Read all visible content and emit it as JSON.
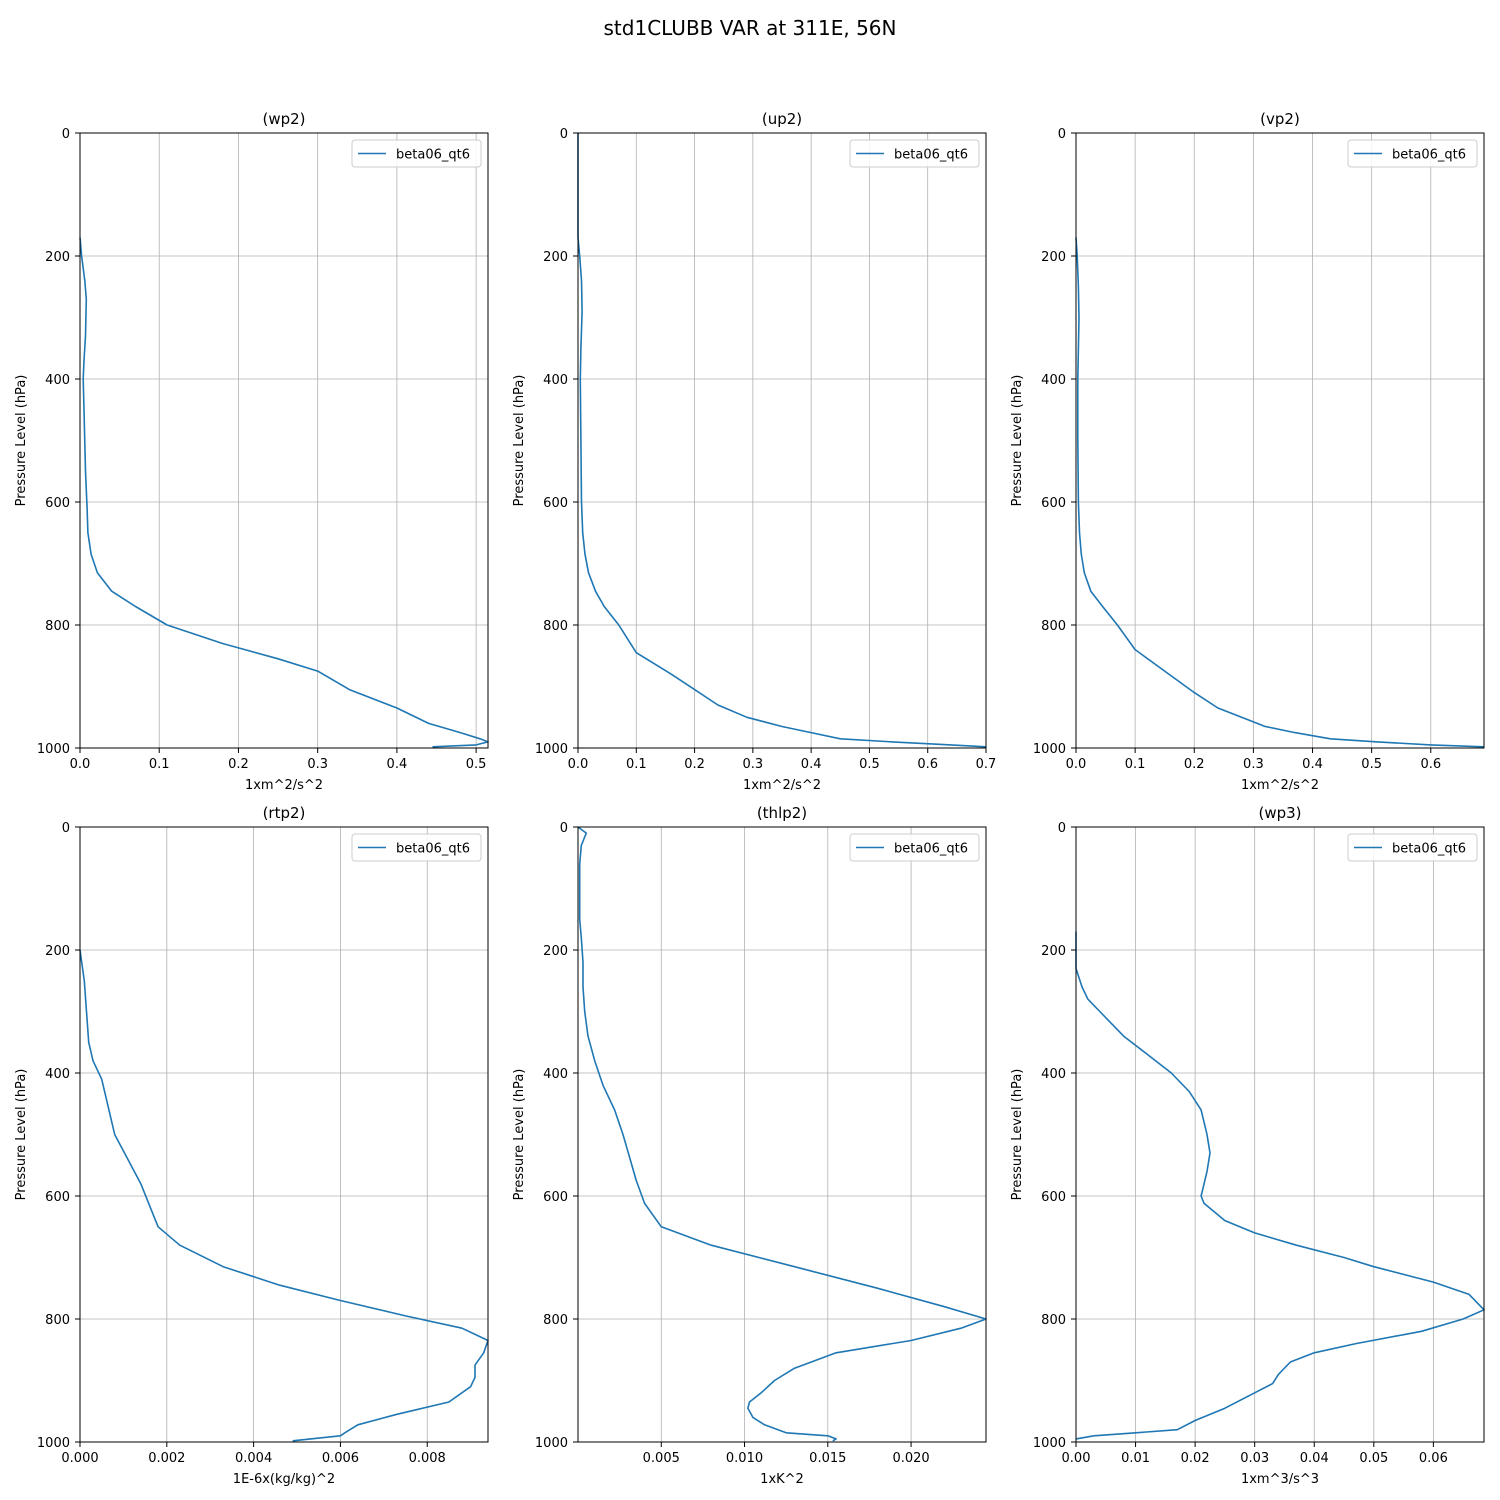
{
  "figure": {
    "title": "std1CLUBB VAR at 311E, 56N"
  },
  "colors": {
    "line": "#1f77b4",
    "grid": "#b0b0b0",
    "axes": "#000000",
    "background": "#ffffff"
  },
  "chart_data": [
    {
      "type": "line",
      "title": "(wp2)",
      "xlabel": "1xm^2/s^2",
      "ylabel": "Pressure Level (hPa)",
      "xlim": [
        0,
        0.515
      ],
      "ylim": [
        1000,
        0
      ],
      "xticks": [
        0,
        0.1,
        0.2,
        0.3,
        0.4,
        0.5
      ],
      "xtick_labels": [
        "0.0",
        "0.1",
        "0.2",
        "0.3",
        "0.4",
        "0.5"
      ],
      "yticks": [
        0,
        200,
        400,
        600,
        800,
        1000
      ],
      "ytick_labels": [
        "0",
        "200",
        "400",
        "600",
        "800",
        "1000"
      ],
      "grid": true,
      "legend": "upper-right",
      "series": [
        {
          "name": "beta06_qt6",
          "x": [
            0,
            0.002,
            0.006,
            0.008,
            0.007,
            0.005,
            0.004,
            0.005,
            0.007,
            0.009,
            0.01,
            0.014,
            0.022,
            0.04,
            0.07,
            0.11,
            0.18,
            0.25,
            0.3,
            0.34,
            0.4,
            0.44,
            0.48,
            0.505,
            0.515,
            0.5,
            0.445
          ],
          "y": [
            170,
            200,
            240,
            270,
            330,
            370,
            400,
            450,
            550,
            610,
            650,
            685,
            715,
            745,
            770,
            800,
            830,
            855,
            875,
            905,
            935,
            960,
            975,
            985,
            990,
            995,
            998
          ]
        }
      ]
    },
    {
      "type": "line",
      "title": "(up2)",
      "xlabel": "1xm^2/s^2",
      "ylabel": "Pressure Level (hPa)",
      "xlim": [
        0,
        0.7
      ],
      "ylim": [
        1000,
        0
      ],
      "xticks": [
        0,
        0.1,
        0.2,
        0.3,
        0.4,
        0.5,
        0.6,
        0.7
      ],
      "xtick_labels": [
        "0.0",
        "0.1",
        "0.2",
        "0.3",
        "0.4",
        "0.5",
        "0.6",
        "0.7"
      ],
      "yticks": [
        0,
        200,
        400,
        600,
        800,
        1000
      ],
      "ytick_labels": [
        "0",
        "200",
        "400",
        "600",
        "800",
        "1000"
      ],
      "grid": true,
      "legend": "upper-right",
      "series": [
        {
          "name": "beta06_qt6",
          "x": [
            0,
            0,
            0.003,
            0.006,
            0.007,
            0.005,
            0.004,
            0.005,
            0.006,
            0.008,
            0.012,
            0.018,
            0.03,
            0.045,
            0.07,
            0.1,
            0.16,
            0.2,
            0.24,
            0.29,
            0.35,
            0.4,
            0.45,
            0.54,
            0.64,
            0.7
          ],
          "y": [
            0,
            170,
            200,
            240,
            290,
            350,
            400,
            500,
            600,
            650,
            685,
            715,
            745,
            770,
            800,
            845,
            880,
            905,
            930,
            950,
            965,
            975,
            985,
            990,
            995,
            998
          ]
        }
      ]
    },
    {
      "type": "line",
      "title": "(vp2)",
      "xlabel": "1xm^2/s^2",
      "ylabel": "Pressure Level (hPa)",
      "xlim": [
        0,
        0.69
      ],
      "ylim": [
        1000,
        0
      ],
      "xticks": [
        0,
        0.1,
        0.2,
        0.3,
        0.4,
        0.5,
        0.6
      ],
      "xtick_labels": [
        "0.0",
        "0.1",
        "0.2",
        "0.3",
        "0.4",
        "0.5",
        "0.6"
      ],
      "yticks": [
        0,
        200,
        400,
        600,
        800,
        1000
      ],
      "ytick_labels": [
        "0",
        "200",
        "400",
        "600",
        "800",
        "1000"
      ],
      "grid": true,
      "legend": "upper-right",
      "series": [
        {
          "name": "beta06_qt6",
          "x": [
            0,
            0.002,
            0.004,
            0.005,
            0.004,
            0.003,
            0.003,
            0.004,
            0.006,
            0.009,
            0.014,
            0.025,
            0.045,
            0.07,
            0.1,
            0.15,
            0.2,
            0.24,
            0.28,
            0.32,
            0.37,
            0.43,
            0.51,
            0.6,
            0.69
          ],
          "y": [
            170,
            200,
            250,
            300,
            350,
            400,
            500,
            600,
            650,
            685,
            715,
            745,
            770,
            800,
            840,
            875,
            910,
            935,
            950,
            965,
            975,
            985,
            990,
            995,
            998
          ]
        }
      ]
    },
    {
      "type": "line",
      "title": "(rtp2)",
      "xlabel": "1E-6x(kg/kg)^2",
      "ylabel": "Pressure Level (hPa)",
      "xlim": [
        0,
        0.0094
      ],
      "ylim": [
        1000,
        0
      ],
      "xticks": [
        0,
        0.002,
        0.004,
        0.006,
        0.008
      ],
      "xtick_labels": [
        "0.000",
        "0.002",
        "0.004",
        "0.006",
        "0.008"
      ],
      "yticks": [
        0,
        200,
        400,
        600,
        800,
        1000
      ],
      "ytick_labels": [
        "0",
        "200",
        "400",
        "600",
        "800",
        "1000"
      ],
      "grid": true,
      "legend": "upper-right",
      "series": [
        {
          "name": "beta06_qt6",
          "x": [
            0,
            0.0001,
            0.00015,
            0.0002,
            0.0003,
            0.0005,
            0.0008,
            0.0014,
            0.0016,
            0.0018,
            0.0023,
            0.0033,
            0.0046,
            0.006,
            0.0075,
            0.0088,
            0.0094,
            0.0093,
            0.0091,
            0.0091,
            0.009,
            0.0085,
            0.0073,
            0.0064,
            0.0061,
            0.006,
            0.0049
          ],
          "y": [
            200,
            250,
            300,
            350,
            380,
            410,
            500,
            580,
            615,
            650,
            680,
            715,
            745,
            770,
            795,
            815,
            835,
            855,
            875,
            895,
            910,
            935,
            955,
            972,
            985,
            990,
            998
          ]
        }
      ]
    },
    {
      "type": "line",
      "title": "(thlp2)",
      "xlabel": "1xK^2",
      "ylabel": "Pressure Level (hPa)",
      "xlim": [
        0,
        0.0245
      ],
      "ylim": [
        1000,
        0
      ],
      "xticks": [
        0.005,
        0.01,
        0.015,
        0.02
      ],
      "xtick_labels": [
        "0.005",
        "0.010",
        "0.015",
        "0.020"
      ],
      "yticks": [
        0,
        200,
        400,
        600,
        800,
        1000
      ],
      "ytick_labels": [
        "0",
        "200",
        "400",
        "600",
        "800",
        "1000"
      ],
      "grid": true,
      "legend": "upper-right",
      "series": [
        {
          "name": "beta06_qt6",
          "x": [
            0,
            0.0005,
            0.0002,
            0.0001,
            0.0001,
            0.0001,
            0.0002,
            0.0003,
            0.0003,
            0.0004,
            0.0006,
            0.001,
            0.0015,
            0.0022,
            0.0027,
            0.0035,
            0.004,
            0.005,
            0.008,
            0.013,
            0.018,
            0.022,
            0.0245,
            0.023,
            0.02,
            0.0155,
            0.013,
            0.0118,
            0.011,
            0.0103,
            0.0102,
            0.0105,
            0.0112,
            0.0125,
            0.015,
            0.0155,
            0.0153
          ],
          "y": [
            0,
            10,
            30,
            60,
            100,
            150,
            180,
            220,
            260,
            300,
            340,
            380,
            420,
            460,
            500,
            575,
            612,
            650,
            680,
            715,
            750,
            780,
            800,
            815,
            835,
            855,
            880,
            900,
            920,
            935,
            945,
            960,
            972,
            985,
            990,
            995,
            998
          ]
        }
      ]
    },
    {
      "type": "line",
      "title": "(wp3)",
      "xlabel": "1xm^3/s^3",
      "ylabel": "Pressure Level (hPa)",
      "xlim": [
        0,
        0.0685
      ],
      "ylim": [
        1000,
        0
      ],
      "xticks": [
        0,
        0.01,
        0.02,
        0.03,
        0.04,
        0.05,
        0.06
      ],
      "xtick_labels": [
        "0.00",
        "0.01",
        "0.02",
        "0.03",
        "0.04",
        "0.05",
        "0.06"
      ],
      "yticks": [
        0,
        200,
        400,
        600,
        800,
        1000
      ],
      "ytick_labels": [
        "0",
        "200",
        "400",
        "600",
        "800",
        "1000"
      ],
      "grid": true,
      "legend": "upper-right",
      "series": [
        {
          "name": "beta06_qt6",
          "x": [
            0,
            0,
            0.001,
            0.002,
            0.004,
            0.008,
            0.012,
            0.016,
            0.019,
            0.021,
            0.022,
            0.0225,
            0.022,
            0.0215,
            0.021,
            0.0215,
            0.025,
            0.03,
            0.037,
            0.045,
            0.05,
            0.06,
            0.066,
            0.0685,
            0.065,
            0.058,
            0.047,
            0.04,
            0.036,
            0.034,
            0.033,
            0.03,
            0.025,
            0.02,
            0.017,
            0.01,
            0.003,
            0
          ],
          "y": [
            170,
            230,
            260,
            280,
            300,
            340,
            370,
            400,
            430,
            460,
            500,
            530,
            560,
            580,
            600,
            612,
            640,
            660,
            680,
            700,
            715,
            740,
            760,
            785,
            800,
            820,
            840,
            855,
            870,
            890,
            905,
            920,
            945,
            965,
            980,
            985,
            990,
            995
          ]
        }
      ]
    }
  ]
}
